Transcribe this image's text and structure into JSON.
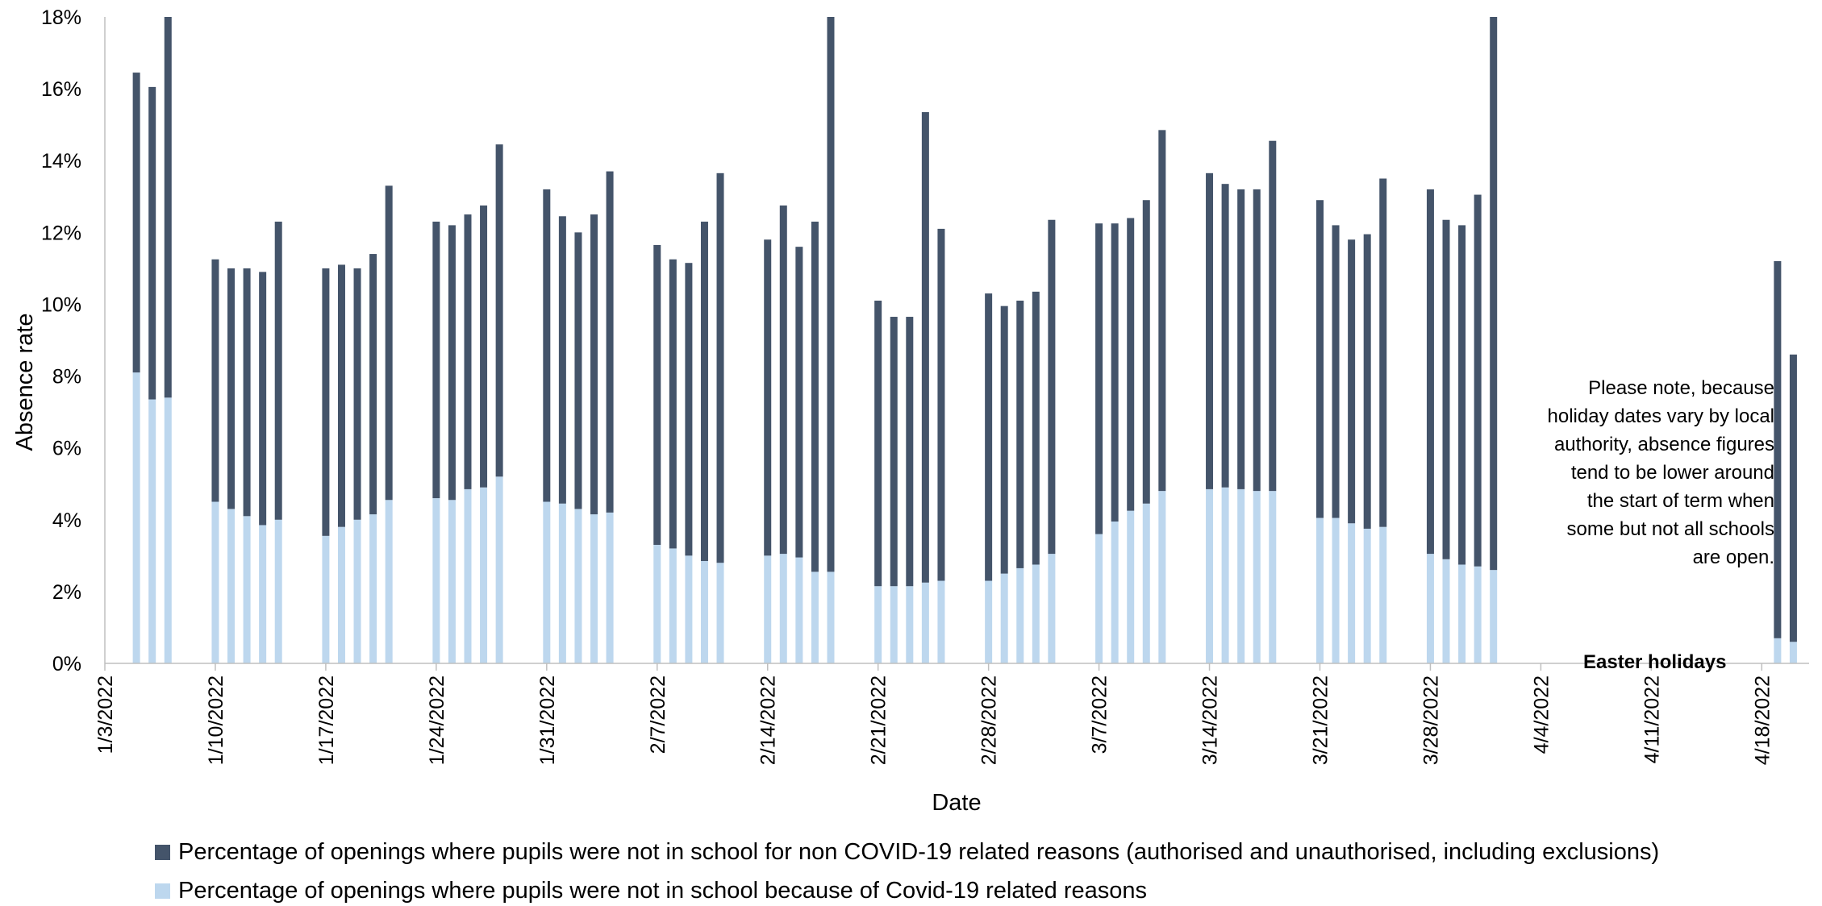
{
  "chart_data": {
    "type": "bar",
    "stacked": true,
    "xlabel": "Date",
    "ylabel": "Absence rate",
    "ylim": [
      0,
      18
    ],
    "y_ticks": [
      "0%",
      "2%",
      "4%",
      "6%",
      "8%",
      "10%",
      "12%",
      "14%",
      "16%",
      "18%"
    ],
    "x_ticks": [
      "1/3/2022",
      "1/10/2022",
      "1/17/2022",
      "1/24/2022",
      "1/31/2022",
      "2/7/2022",
      "2/14/2022",
      "2/21/2022",
      "2/28/2022",
      "3/7/2022",
      "3/14/2022",
      "3/21/2022",
      "3/28/2022",
      "4/4/2022",
      "4/11/2022",
      "4/18/2022"
    ],
    "x": [
      "2022-01-05",
      "2022-01-06",
      "2022-01-07",
      "2022-01-10",
      "2022-01-11",
      "2022-01-12",
      "2022-01-13",
      "2022-01-14",
      "2022-01-17",
      "2022-01-18",
      "2022-01-19",
      "2022-01-20",
      "2022-01-21",
      "2022-01-24",
      "2022-01-25",
      "2022-01-26",
      "2022-01-27",
      "2022-01-28",
      "2022-01-31",
      "2022-02-01",
      "2022-02-02",
      "2022-02-03",
      "2022-02-04",
      "2022-02-07",
      "2022-02-08",
      "2022-02-09",
      "2022-02-10",
      "2022-02-11",
      "2022-02-14",
      "2022-02-15",
      "2022-02-16",
      "2022-02-17",
      "2022-02-18",
      "2022-02-21",
      "2022-02-22",
      "2022-02-23",
      "2022-02-24",
      "2022-02-25",
      "2022-02-28",
      "2022-03-01",
      "2022-03-02",
      "2022-03-03",
      "2022-03-04",
      "2022-03-07",
      "2022-03-08",
      "2022-03-09",
      "2022-03-10",
      "2022-03-11",
      "2022-03-14",
      "2022-03-15",
      "2022-03-16",
      "2022-03-17",
      "2022-03-18",
      "2022-03-21",
      "2022-03-22",
      "2022-03-23",
      "2022-03-24",
      "2022-03-25",
      "2022-03-28",
      "2022-03-29",
      "2022-03-30",
      "2022-03-31",
      "2022-04-01",
      "2022-04-19",
      "2022-04-20"
    ],
    "series": [
      {
        "name": "Percentage of openings where pupils were not in school because of Covid-19 related reasons",
        "color": "#bdd7ee",
        "values": [
          8.1,
          7.35,
          7.4,
          4.5,
          4.3,
          4.1,
          3.85,
          4.0,
          3.55,
          3.8,
          4.0,
          4.15,
          4.55,
          4.6,
          4.55,
          4.85,
          4.9,
          5.2,
          4.5,
          4.45,
          4.3,
          4.15,
          4.2,
          3.3,
          3.2,
          3.0,
          2.85,
          2.8,
          3.0,
          3.05,
          2.95,
          2.55,
          2.55,
          2.15,
          2.15,
          2.15,
          2.25,
          2.3,
          2.3,
          2.5,
          2.65,
          2.75,
          3.05,
          3.6,
          3.95,
          4.25,
          4.45,
          4.8,
          4.85,
          4.9,
          4.85,
          4.8,
          4.8,
          4.05,
          4.05,
          3.9,
          3.75,
          3.8,
          3.05,
          2.9,
          2.75,
          2.7,
          2.6,
          0.7,
          0.6
        ]
      },
      {
        "name": "Percentage of openings where pupils were not in school for non COVID-19 related reasons (authorised and unauthorised, including exclusions)",
        "color": "#44546a",
        "values": [
          8.35,
          8.7,
          10.9,
          6.75,
          6.7,
          6.9,
          7.05,
          8.3,
          7.45,
          7.3,
          7.0,
          7.25,
          8.75,
          7.7,
          7.65,
          7.65,
          7.85,
          9.25,
          8.7,
          8.0,
          7.7,
          8.35,
          9.5,
          8.35,
          8.05,
          8.15,
          9.45,
          10.85,
          8.8,
          9.7,
          8.65,
          9.75,
          16.0,
          7.95,
          7.5,
          7.5,
          13.1,
          9.8,
          8.0,
          7.45,
          7.45,
          7.6,
          9.3,
          8.65,
          8.3,
          8.15,
          8.45,
          10.05,
          8.8,
          8.45,
          8.35,
          8.4,
          9.75,
          8.85,
          8.15,
          7.9,
          8.2,
          9.7,
          10.15,
          9.45,
          9.45,
          10.35,
          15.9,
          10.5,
          8.0
        ]
      }
    ],
    "annotations": [
      "Easter holidays",
      "Please note, because holiday dates vary by local authority, absence figures tend to be lower around the start of term when some but not all schools are open."
    ],
    "grid": false,
    "legend_position": "bottom"
  }
}
